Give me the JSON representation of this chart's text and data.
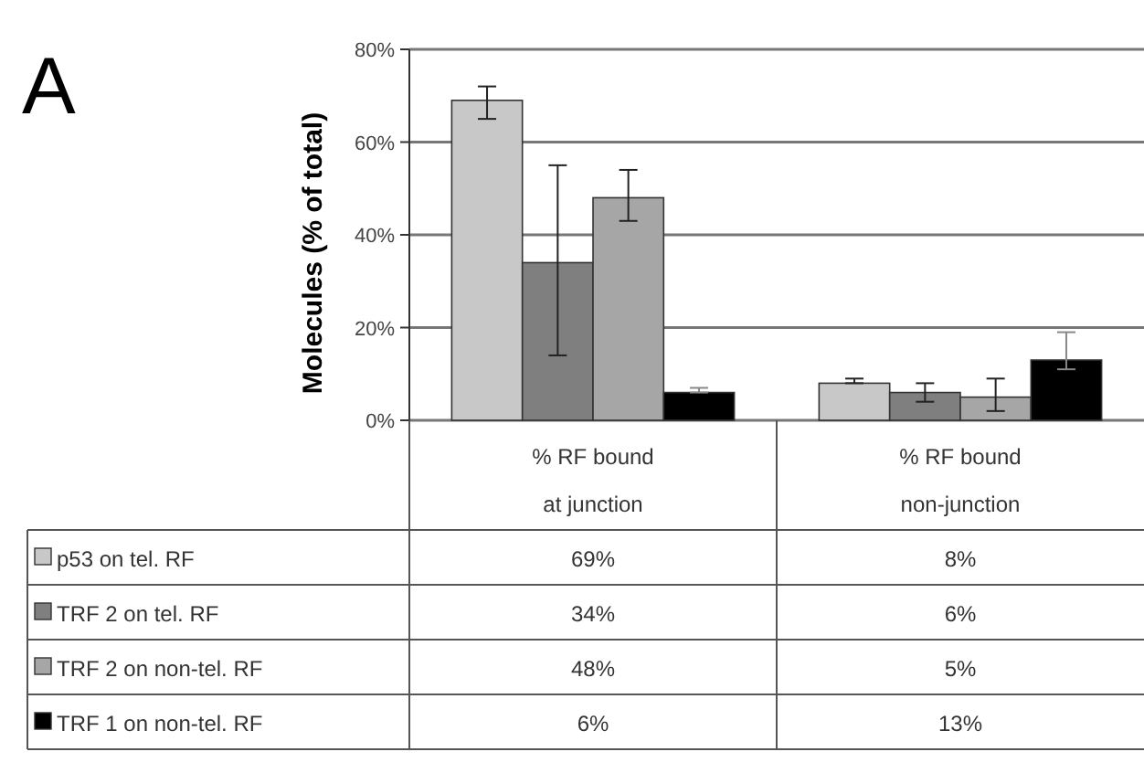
{
  "chart_data": {
    "type": "bar",
    "ylabel": "Molecules (% of total)",
    "categories": [
      "% RF bound at junction",
      "% RF bound non-junction"
    ],
    "series": [
      {
        "name": "p53 on tel. RF",
        "color": "#c8c8c8",
        "values": [
          69,
          8
        ],
        "errors": [
          [
            65,
            72
          ],
          [
            8,
            9
          ]
        ],
        "value_labels": [
          "69%",
          "8%"
        ]
      },
      {
        "name": "TRF 2 on tel. RF",
        "color": "#7f7f7f",
        "values": [
          34,
          6
        ],
        "errors": [
          [
            14,
            55
          ],
          [
            4,
            8
          ]
        ],
        "value_labels": [
          "34%",
          "6%"
        ]
      },
      {
        "name": "TRF 2 on non-tel. RF",
        "color": "#a6a6a6",
        "values": [
          48,
          5
        ],
        "errors": [
          [
            43,
            54
          ],
          [
            2,
            9
          ]
        ],
        "value_labels": [
          "48%",
          "5%"
        ]
      },
      {
        "name": "TRF 1 on non-tel. RF",
        "color": "#000000",
        "values": [
          6,
          13
        ],
        "errors": [
          [
            6,
            7
          ],
          [
            11,
            19
          ]
        ],
        "value_labels": [
          "6%",
          "13%"
        ]
      }
    ],
    "ylim": [
      0,
      80
    ],
    "yticks": [
      {
        "value": 0,
        "label": "0%"
      },
      {
        "value": 20,
        "label": "20%"
      },
      {
        "value": 40,
        "label": "40%"
      },
      {
        "value": 60,
        "label": "60%"
      },
      {
        "value": 80,
        "label": "80%"
      }
    ],
    "grid": "y",
    "legend": "bottom",
    "annotations": [
      "A"
    ]
  }
}
